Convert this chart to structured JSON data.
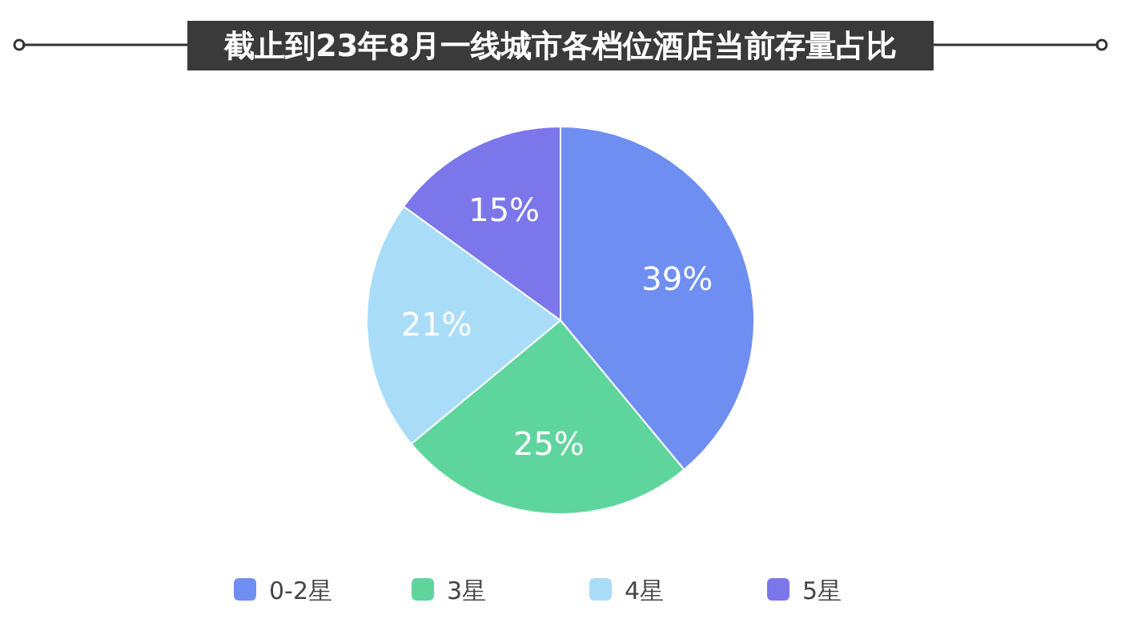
{
  "chart_data": {
    "type": "pie",
    "title": "截止到23年8月一线城市各档位酒店当前存量占比",
    "categories": [
      "0-2星",
      "3星",
      "4星",
      "5星"
    ],
    "values": [
      39,
      25,
      21,
      15
    ],
    "value_labels": [
      "39%",
      "25%",
      "21%",
      "15%"
    ],
    "colors": [
      "#6e8ef2",
      "#5fd59e",
      "#a9ddf7",
      "#7b76ea"
    ],
    "legend": "bottom"
  }
}
